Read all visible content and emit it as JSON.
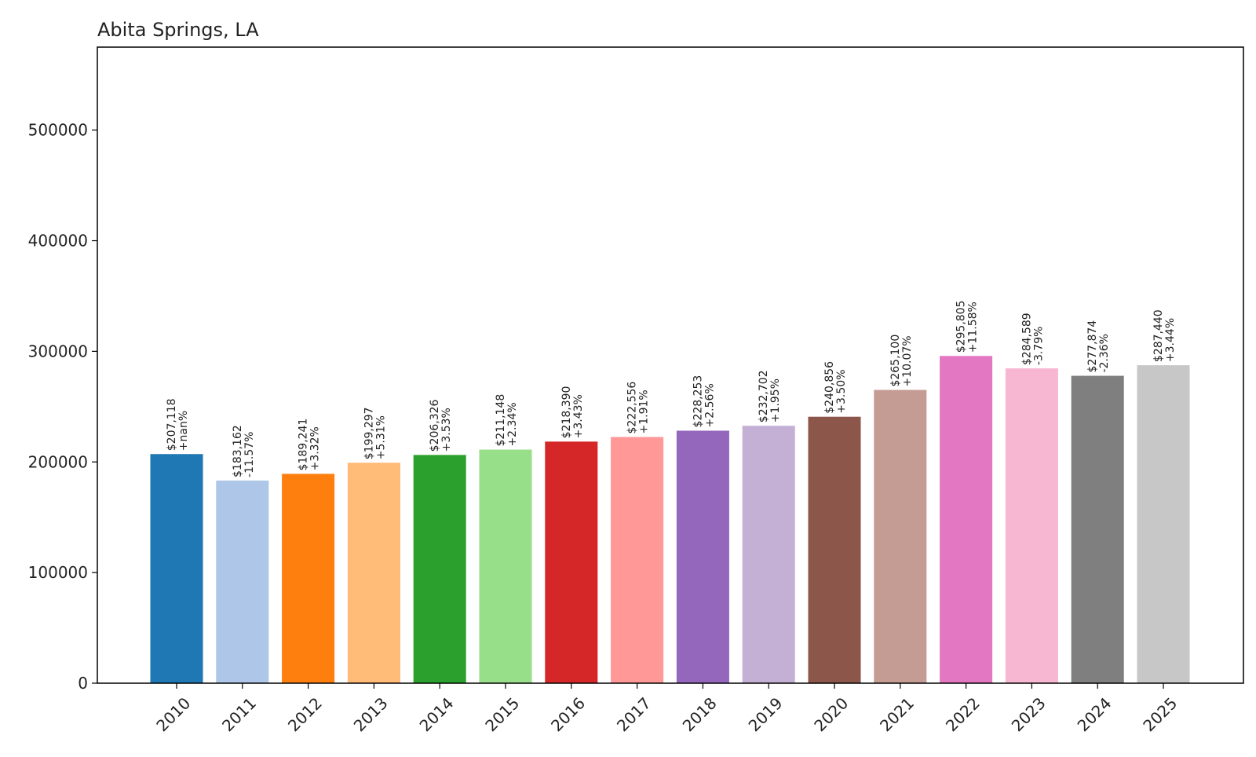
{
  "chart_data": {
    "type": "bar",
    "title": "Abita Springs, LA",
    "xlabel": "",
    "ylabel": "",
    "ylim": [
      0,
      575000
    ],
    "yticks": [
      0,
      100000,
      200000,
      300000,
      400000,
      500000
    ],
    "grid": false,
    "categories": [
      "2010",
      "2011",
      "2012",
      "2013",
      "2014",
      "2015",
      "2016",
      "2017",
      "2018",
      "2019",
      "2020",
      "2021",
      "2022",
      "2023",
      "2024",
      "2025"
    ],
    "values": [
      207118,
      183162,
      189241,
      199297,
      206326,
      211148,
      218390,
      222556,
      228253,
      232702,
      240856,
      265100,
      295805,
      284589,
      277874,
      287440
    ],
    "value_labels": [
      "$207,118",
      "$183,162",
      "$189,241",
      "$199,297",
      "$206,326",
      "$211,148",
      "$218,390",
      "$222,556",
      "$228,253",
      "$232,702",
      "$240,856",
      "$265,100",
      "$295,805",
      "$284,589",
      "$277,874",
      "$287,440"
    ],
    "change_labels": [
      "+nan%",
      "-11.57%",
      "+3.32%",
      "+5.31%",
      "+3.53%",
      "+2.34%",
      "+3.43%",
      "+1.91%",
      "+2.56%",
      "+1.95%",
      "+3.50%",
      "+10.07%",
      "+11.58%",
      "-3.79%",
      "-2.36%",
      "+3.44%"
    ],
    "colors": [
      "#1f77b4",
      "#aec7e8",
      "#ff7f0e",
      "#ffbb78",
      "#2ca02c",
      "#98df8a",
      "#d62728",
      "#ff9896",
      "#9467bd",
      "#c5b0d5",
      "#8c564b",
      "#c49c94",
      "#e377c2",
      "#f7b6d2",
      "#7f7f7f",
      "#c7c7c7"
    ]
  }
}
